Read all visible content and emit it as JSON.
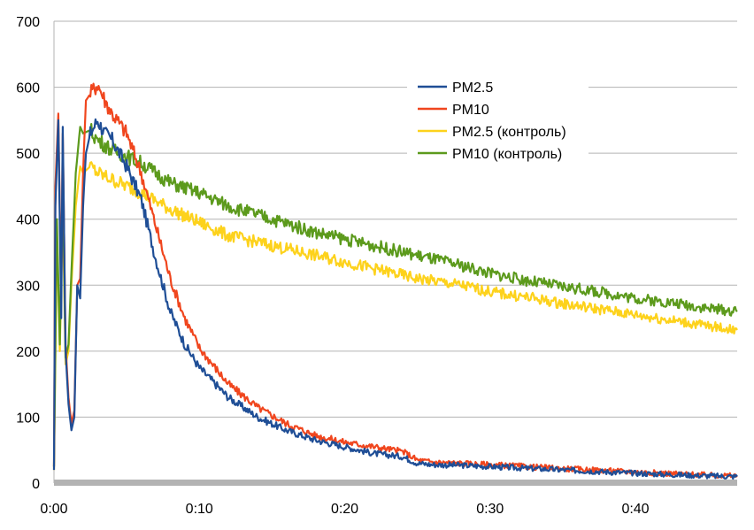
{
  "chart_data": {
    "type": "line",
    "title": "",
    "xlabel": "",
    "ylabel": "",
    "x_unit": "minutes",
    "xlim": [
      0,
      47
    ],
    "ylim": [
      0,
      700
    ],
    "x_ticks": [
      "0:00",
      "0:10",
      "0:20",
      "0:30",
      "0:40"
    ],
    "x_tick_values": [
      0,
      10,
      20,
      30,
      40
    ],
    "y_ticks": [
      "0",
      "100",
      "200",
      "300",
      "400",
      "500",
      "600",
      "700"
    ],
    "y_tick_values": [
      0,
      100,
      200,
      300,
      400,
      500,
      600,
      700
    ],
    "grid": "horizontal",
    "legend_position": "top-right",
    "series": [
      {
        "name": "PM2.5",
        "color": "#1f4e96",
        "x": [
          0,
          0.1,
          0.3,
          0.5,
          0.6,
          0.8,
          1.0,
          1.2,
          1.4,
          1.6,
          1.8,
          2.0,
          2.2,
          2.5,
          3.0,
          3.5,
          4.0,
          5.0,
          6.0,
          7.0,
          8.0,
          9.0,
          10.0,
          12.0,
          14.0,
          16.0,
          18.0,
          20.0,
          22.0,
          24.0,
          25.0,
          26.0,
          28.0,
          30.0,
          35.0,
          40.0,
          45.0,
          47.0
        ],
        "values": [
          20,
          420,
          550,
          250,
          540,
          200,
          120,
          80,
          100,
          300,
          280,
          420,
          500,
          530,
          550,
          530,
          520,
          480,
          430,
          340,
          260,
          210,
          175,
          130,
          100,
          80,
          65,
          55,
          45,
          40,
          30,
          28,
          27,
          25,
          20,
          15,
          11,
          10
        ]
      },
      {
        "name": "PM10",
        "color": "#f0461e",
        "x": [
          0,
          0.1,
          0.3,
          0.5,
          0.6,
          0.8,
          1.0,
          1.2,
          1.4,
          1.6,
          1.8,
          2.0,
          2.2,
          2.5,
          3.0,
          3.5,
          4.0,
          5.0,
          6.0,
          7.0,
          8.0,
          9.0,
          10.0,
          12.0,
          14.0,
          16.0,
          18.0,
          20.0,
          22.0,
          24.0,
          25.0,
          26.0,
          28.0,
          30.0,
          35.0,
          40.0,
          45.0,
          47.0
        ],
        "values": [
          25,
          450,
          560,
          280,
          530,
          210,
          130,
          90,
          110,
          300,
          310,
          470,
          580,
          590,
          605,
          580,
          560,
          530,
          470,
          390,
          310,
          250,
          205,
          150,
          115,
          90,
          72,
          62,
          55,
          48,
          35,
          32,
          30,
          28,
          22,
          17,
          12,
          11
        ]
      },
      {
        "name": "PM2.5 (контроль)",
        "color": "#fdd21c",
        "x": [
          0,
          0.2,
          0.4,
          0.6,
          0.8,
          1.0,
          1.2,
          1.5,
          1.8,
          2.0,
          2.5,
          3.0,
          4.0,
          5.0,
          6.0,
          8.0,
          10.0,
          12.0,
          15.0,
          18.0,
          20.0,
          23.0,
          25.0,
          28.0,
          30.0,
          33.0,
          35.0,
          38.0,
          40.0,
          43.0,
          45.0,
          47.0
        ],
        "values": [
          20,
          380,
          200,
          420,
          180,
          200,
          300,
          420,
          480,
          470,
          480,
          470,
          460,
          450,
          440,
          415,
          395,
          375,
          360,
          345,
          335,
          320,
          310,
          300,
          290,
          280,
          272,
          262,
          255,
          245,
          238,
          232
        ]
      },
      {
        "name": "PM10  (контроль)",
        "color": "#5c9a1c",
        "x": [
          0,
          0.2,
          0.4,
          0.6,
          0.8,
          1.0,
          1.2,
          1.5,
          1.8,
          2.0,
          2.5,
          3.0,
          4.0,
          5.0,
          6.0,
          8.0,
          10.0,
          12.0,
          15.0,
          18.0,
          20.0,
          23.0,
          25.0,
          28.0,
          30.0,
          33.0,
          35.0,
          38.0,
          40.0,
          43.0,
          45.0,
          47.0
        ],
        "values": [
          25,
          400,
          210,
          460,
          190,
          210,
          320,
          470,
          540,
          530,
          535,
          520,
          505,
          495,
          485,
          455,
          440,
          420,
          400,
          380,
          370,
          355,
          345,
          330,
          318,
          305,
          298,
          288,
          280,
          272,
          265,
          260
        ]
      }
    ]
  }
}
